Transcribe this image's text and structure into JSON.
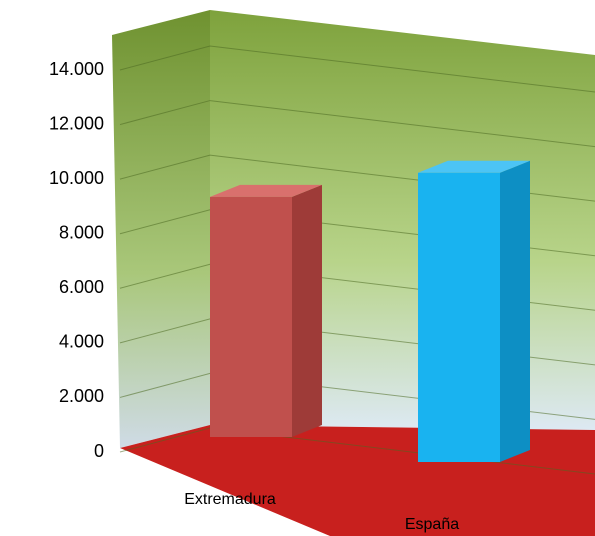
{
  "chart_data": {
    "type": "bar3d",
    "categories": [
      "Extremadura",
      "España"
    ],
    "values": [
      8800,
      10600
    ],
    "colors": [
      "#c0504d",
      "#19b3f0"
    ],
    "ylim": [
      0,
      14000
    ],
    "yticks": [
      0,
      {
        "value": 2000,
        "label": "2.000"
      },
      {
        "value": 4000,
        "label": "4.000"
      },
      {
        "value": 6000,
        "label": "6.000"
      },
      {
        "value": 8000,
        "label": "8.000"
      },
      {
        "value": 10000,
        "label": "10.000"
      },
      {
        "value": 12000,
        "label": "12.000"
      },
      {
        "value": 14000,
        "label": "14.000"
      }
    ],
    "grid": true
  }
}
